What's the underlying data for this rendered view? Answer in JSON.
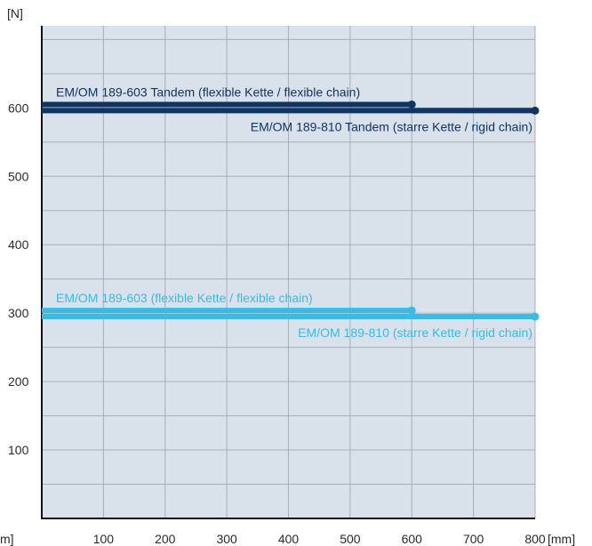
{
  "chart_data": {
    "type": "line",
    "y_unit": "[N]",
    "x_unit": "[mm]",
    "x_unit_left": "m]",
    "xlim": [
      0,
      800
    ],
    "ylim": [
      0,
      720
    ],
    "x_ticks": [
      100,
      200,
      300,
      400,
      500,
      600,
      700,
      800
    ],
    "y_ticks": [
      100,
      200,
      300,
      400,
      500,
      600
    ],
    "grid": true,
    "plot_background": "#d9e1ea",
    "grid_color": "#a7aeb6",
    "series": [
      {
        "name": "EM/OM 189-603 Tandem (flexible Kette / flexible chain)",
        "color": "#0e3563",
        "x": [
          0,
          600
        ],
        "y": [
          605,
          605
        ],
        "label_anchor": "start-above"
      },
      {
        "name": "EM/OM 189-810 Tandem (starre Kette / rigid chain)",
        "color": "#0e3563",
        "x": [
          0,
          800
        ],
        "y": [
          596,
          596
        ],
        "label_anchor": "end-below"
      },
      {
        "name": "EM/OM 189-603 (flexible Kette / flexible chain)",
        "color": "#33bde8",
        "x": [
          0,
          600
        ],
        "y": [
          304,
          304
        ],
        "label_anchor": "start-above"
      },
      {
        "name": "EM/OM 189-810 (starre Kette / rigid chain)",
        "color": "#33bde8",
        "x": [
          0,
          800
        ],
        "y": [
          295,
          295
        ],
        "label_anchor": "end-below"
      }
    ]
  }
}
